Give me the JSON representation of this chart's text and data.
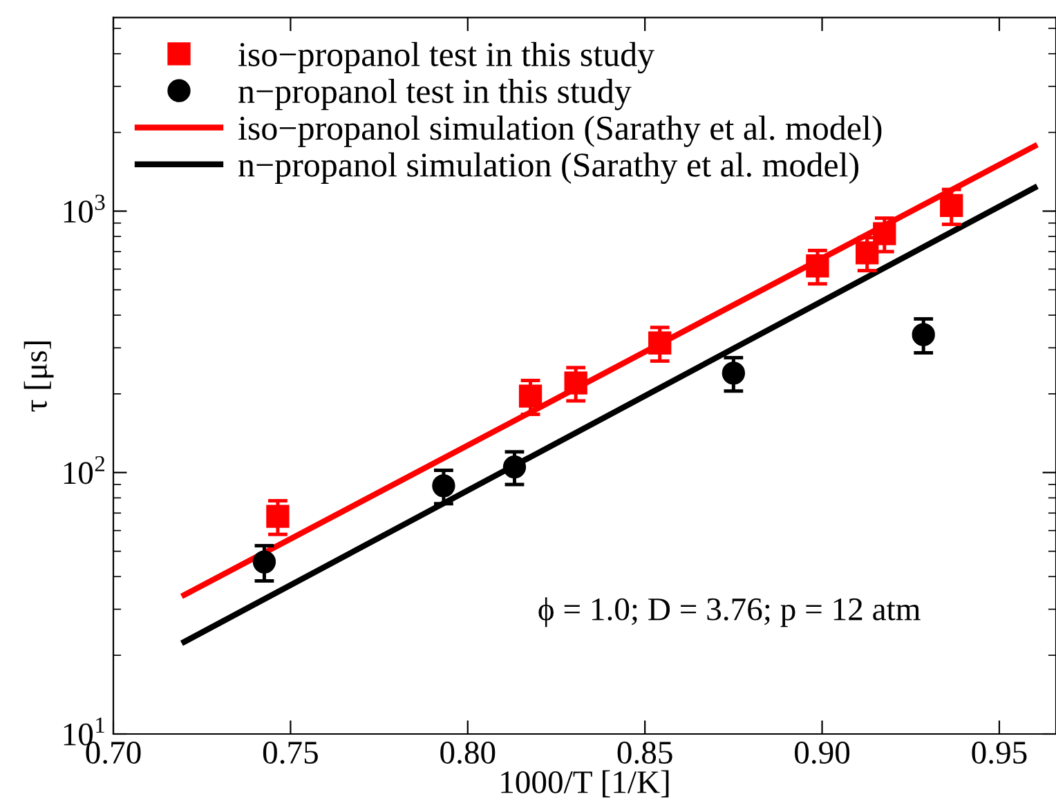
{
  "chart_data": {
    "type": "scatter",
    "xlabel": "1000/T [1/K]",
    "ylabel": "τ [μs]",
    "log": "y",
    "xlim": [
      0.7,
      0.966
    ],
    "xticks": [
      {
        "value": 0.7,
        "label": "0.70"
      },
      0.75,
      {
        "value": 0.8,
        "label": "0.80"
      },
      0.85,
      {
        "value": 0.9,
        "label": "0.90"
      },
      0.95
    ],
    "ylim": [
      10,
      5500
    ],
    "yticks": [
      {
        "value": 10,
        "label": "10$^{1}$"
      },
      {
        "value": 100,
        "label": "10$^{2}$"
      },
      {
        "value": 1000,
        "label": "10$^{3}$"
      }
    ],
    "grid": false,
    "legend": "top left",
    "series": [
      {
        "name": "iso−propanol test in this study",
        "marker": "square",
        "color": "#ff0000",
        "x": [
          0.7464,
          0.8177,
          0.8305,
          0.8542,
          0.8987,
          0.9127,
          0.9176,
          0.9365
        ],
        "values": [
          68,
          196,
          220,
          313,
          617,
          692,
          820,
          1050
        ],
        "errors": [
          10,
          29,
          32,
          46,
          90,
          100,
          120,
          160
        ]
      },
      {
        "name": "n−propanol test in this study",
        "marker": "circle",
        "color": "#000000",
        "x": [
          0.7426,
          0.7932,
          0.8132,
          0.875,
          0.9286
        ],
        "values": [
          45.5,
          89,
          105,
          240,
          337
        ],
        "errors": [
          7,
          13,
          15,
          35,
          50
        ]
      },
      {
        "name": "iso−propanol simulation (Sarathy et al. model)",
        "type": "line",
        "marker": "none",
        "line_style": "solid",
        "color": "#ff0000",
        "x": [
          0.72,
          0.96
        ],
        "values": [
          34,
          1774
        ]
      },
      {
        "name": "n−propanol simulation (Sarathy et al. model)",
        "type": "line",
        "marker": "none",
        "line_style": "solid",
        "color": "#000000",
        "x": [
          0.72,
          0.96
        ],
        "values": [
          22.5,
          1230
        ]
      }
    ],
    "annotations": [
      "ϕ = 1.0; D = 3.76; p = 12 atm"
    ]
  }
}
